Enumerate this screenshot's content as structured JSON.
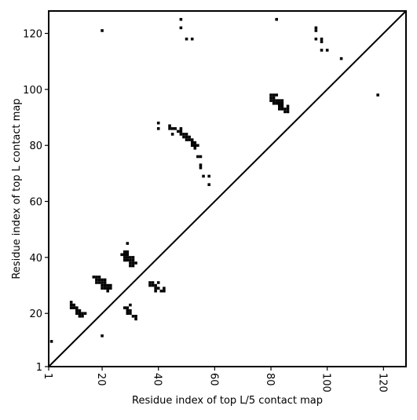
{
  "chart_data": {
    "type": "scatter",
    "xlabel": "Residue index of top L/5 contact map",
    "ylabel": "Residue index of top L contact map",
    "xlim": [
      1,
      128
    ],
    "ylim": [
      1,
      128
    ],
    "x_ticks": [
      1,
      20,
      40,
      60,
      80,
      100,
      120
    ],
    "y_ticks": [
      1,
      20,
      40,
      60,
      80,
      100,
      120
    ],
    "x_tick_labels": [
      "1",
      "20",
      "40",
      "60",
      "80",
      "100",
      "120"
    ],
    "y_tick_labels": [
      "1",
      "20",
      "40",
      "60",
      "80",
      "100",
      "120"
    ],
    "x_tick_rotation": "vertical",
    "grid": false,
    "diagonal": true,
    "marker": "square",
    "color": "#000000",
    "series": [
      {
        "region": "upper-left (top L)",
        "points": [
          [
            20,
            121
          ],
          [
            48,
            125
          ],
          [
            48,
            122
          ],
          [
            50,
            118
          ],
          [
            52,
            118
          ],
          [
            82,
            125
          ],
          [
            96,
            122
          ],
          [
            96,
            121
          ],
          [
            96,
            118
          ],
          [
            98,
            118
          ],
          [
            98,
            117
          ],
          [
            98,
            114
          ],
          [
            100,
            114
          ],
          [
            105,
            111
          ],
          [
            118,
            98
          ],
          [
            40,
            88
          ],
          [
            40,
            86
          ],
          [
            44,
            87
          ],
          [
            44,
            86
          ],
          [
            45,
            86
          ],
          [
            46,
            86
          ],
          [
            48,
            86
          ],
          [
            47,
            85
          ],
          [
            48,
            85
          ],
          [
            45,
            84
          ],
          [
            48,
            84
          ],
          [
            49,
            84
          ],
          [
            50,
            84
          ],
          [
            49,
            83
          ],
          [
            50,
            83
          ],
          [
            51,
            83
          ],
          [
            50,
            82
          ],
          [
            51,
            82
          ],
          [
            52,
            82
          ],
          [
            52,
            81
          ],
          [
            53,
            81
          ],
          [
            52,
            80
          ],
          [
            53,
            80
          ],
          [
            54,
            80
          ],
          [
            53,
            79
          ],
          [
            54,
            76
          ],
          [
            55,
            76
          ],
          [
            55,
            73
          ],
          [
            55,
            72
          ],
          [
            56,
            69
          ],
          [
            58,
            69
          ],
          [
            58,
            66
          ],
          [
            80,
            98
          ],
          [
            81,
            98
          ],
          [
            82,
            98
          ],
          [
            80,
            97
          ],
          [
            81,
            97
          ],
          [
            80,
            96
          ],
          [
            81,
            96
          ],
          [
            82,
            96
          ],
          [
            83,
            96
          ],
          [
            84,
            96
          ],
          [
            81,
            95
          ],
          [
            82,
            95
          ],
          [
            83,
            95
          ],
          [
            84,
            95
          ],
          [
            83,
            94
          ],
          [
            84,
            94
          ],
          [
            86,
            94
          ],
          [
            83,
            93
          ],
          [
            84,
            93
          ],
          [
            85,
            93
          ],
          [
            86,
            93
          ],
          [
            85,
            92
          ],
          [
            86,
            92
          ]
        ]
      },
      {
        "region": "lower-right (top L/5)",
        "points": [
          [
            2,
            10
          ],
          [
            20,
            12
          ],
          [
            9,
            24
          ],
          [
            9,
            23
          ],
          [
            10,
            23
          ],
          [
            9,
            22
          ],
          [
            10,
            22
          ],
          [
            11,
            22
          ],
          [
            11,
            21
          ],
          [
            12,
            21
          ],
          [
            11,
            20
          ],
          [
            12,
            20
          ],
          [
            13,
            20
          ],
          [
            14,
            20
          ],
          [
            12,
            19
          ],
          [
            13,
            19
          ],
          [
            17,
            33
          ],
          [
            18,
            33
          ],
          [
            19,
            33
          ],
          [
            18,
            32
          ],
          [
            19,
            32
          ],
          [
            20,
            32
          ],
          [
            21,
            32
          ],
          [
            18,
            31
          ],
          [
            19,
            31
          ],
          [
            20,
            31
          ],
          [
            21,
            31
          ],
          [
            20,
            30
          ],
          [
            21,
            30
          ],
          [
            22,
            30
          ],
          [
            23,
            30
          ],
          [
            20,
            29
          ],
          [
            21,
            29
          ],
          [
            22,
            29
          ],
          [
            23,
            29
          ],
          [
            22,
            28
          ],
          [
            28,
            42
          ],
          [
            29,
            42
          ],
          [
            27,
            41
          ],
          [
            28,
            41
          ],
          [
            29,
            41
          ],
          [
            28,
            40
          ],
          [
            29,
            40
          ],
          [
            30,
            40
          ],
          [
            31,
            40
          ],
          [
            28,
            39
          ],
          [
            29,
            39
          ],
          [
            30,
            39
          ],
          [
            31,
            39
          ],
          [
            30,
            38
          ],
          [
            31,
            38
          ],
          [
            32,
            38
          ],
          [
            30,
            37
          ],
          [
            31,
            37
          ],
          [
            29,
            45
          ],
          [
            37,
            31
          ],
          [
            38,
            31
          ],
          [
            37,
            30
          ],
          [
            38,
            30
          ],
          [
            39,
            30
          ],
          [
            40,
            31
          ],
          [
            39,
            29
          ],
          [
            40,
            29
          ],
          [
            39,
            28
          ],
          [
            41,
            28
          ],
          [
            42,
            28
          ],
          [
            42,
            29
          ],
          [
            28,
            22
          ],
          [
            29,
            22
          ],
          [
            30,
            23
          ],
          [
            29,
            21
          ],
          [
            30,
            21
          ],
          [
            29,
            20
          ],
          [
            30,
            20
          ],
          [
            31,
            19
          ],
          [
            32,
            19
          ],
          [
            32,
            18
          ]
        ]
      }
    ]
  }
}
